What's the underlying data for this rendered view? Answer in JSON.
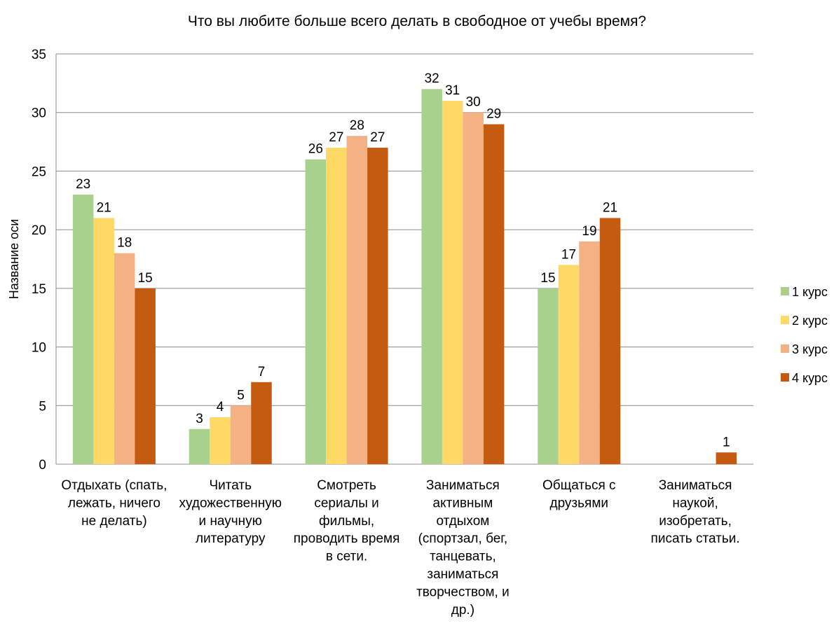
{
  "chart_data": {
    "type": "bar",
    "title": "Что вы любите больше всего делать в свободное от учебы время?",
    "xlabel": "",
    "ylabel": "Название оси",
    "ylim": [
      0,
      35
    ],
    "yticks": [
      0,
      5,
      10,
      15,
      20,
      25,
      30,
      35
    ],
    "grid": true,
    "legend_position": "right",
    "categories": [
      [
        "Отдыхать (спать,",
        "лежать, ничего",
        "не делать)"
      ],
      [
        "Читать",
        "художественную",
        "и научную",
        "литературу"
      ],
      [
        "Смотреть",
        "сериалы и",
        "фильмы,",
        "проводить время",
        "в сети."
      ],
      [
        "Заниматься",
        "активным",
        "отдыхом",
        "(спортзал, бег,",
        "танцевать,",
        "заниматься",
        "творчеством, и",
        "др.)"
      ],
      [
        "Общаться с",
        "друзьями"
      ],
      [
        "Заниматься",
        "наукой,",
        "изобретать,",
        "писать статьи."
      ]
    ],
    "series": [
      {
        "name": "1 курс",
        "color": "#a9d18e",
        "values": [
          23,
          3,
          26,
          32,
          15,
          null
        ]
      },
      {
        "name": "2 курс",
        "color": "#ffd966",
        "values": [
          21,
          4,
          27,
          31,
          17,
          null
        ]
      },
      {
        "name": "3 курс",
        "color": "#f4b183",
        "values": [
          18,
          5,
          28,
          30,
          19,
          null
        ]
      },
      {
        "name": "4 курс",
        "color": "#c55a11",
        "values": [
          15,
          7,
          27,
          29,
          21,
          1
        ]
      }
    ]
  }
}
